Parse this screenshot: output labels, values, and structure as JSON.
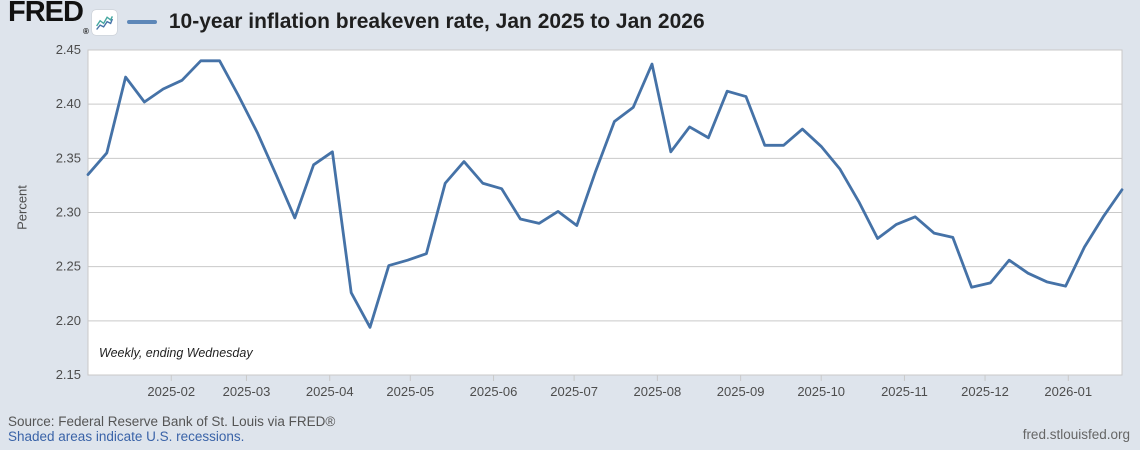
{
  "header": {
    "logo_text": "FRED",
    "logo_reg": "®"
  },
  "chart_data": {
    "type": "line",
    "title": "10-year inflation breakeven rate, Jan 2025 to Jan 2026",
    "ylabel": "Percent",
    "xlabel": "",
    "annotation": "Weekly, ending Wednesday",
    "legend_position": "top",
    "grid": true,
    "ylim": [
      2.15,
      2.45
    ],
    "ytick_step": 0.05,
    "yticks": [
      "2.45",
      "2.40",
      "2.35",
      "2.30",
      "2.25",
      "2.20",
      "2.15"
    ],
    "xticks": [
      "2025-02",
      "2025-03",
      "2025-04",
      "2025-05",
      "2025-06",
      "2025-07",
      "2025-08",
      "2025-09",
      "2025-10",
      "2025-11",
      "2025-12",
      "2026-01"
    ],
    "x": [
      "2025-01-01",
      "2025-01-08",
      "2025-01-15",
      "2025-01-22",
      "2025-01-29",
      "2025-02-05",
      "2025-02-12",
      "2025-02-19",
      "2025-02-26",
      "2025-03-05",
      "2025-03-12",
      "2025-03-19",
      "2025-03-26",
      "2025-04-02",
      "2025-04-09",
      "2025-04-16",
      "2025-04-23",
      "2025-04-30",
      "2025-05-07",
      "2025-05-14",
      "2025-05-21",
      "2025-05-28",
      "2025-06-04",
      "2025-06-11",
      "2025-06-18",
      "2025-06-25",
      "2025-07-02",
      "2025-07-09",
      "2025-07-16",
      "2025-07-23",
      "2025-07-30",
      "2025-08-06",
      "2025-08-13",
      "2025-08-20",
      "2025-08-27",
      "2025-09-03",
      "2025-09-10",
      "2025-09-17",
      "2025-09-24",
      "2025-10-01",
      "2025-10-08",
      "2025-10-15",
      "2025-10-22",
      "2025-10-29",
      "2025-11-05",
      "2025-11-12",
      "2025-11-19",
      "2025-11-26",
      "2025-12-03",
      "2025-12-10",
      "2025-12-17",
      "2025-12-24",
      "2025-12-31",
      "2026-01-07",
      "2026-01-14",
      "2026-01-21"
    ],
    "values": [
      2.335,
      2.355,
      2.425,
      2.402,
      2.414,
      2.422,
      2.44,
      2.44,
      2.408,
      2.374,
      2.335,
      2.295,
      2.344,
      2.356,
      2.226,
      2.194,
      2.251,
      2.256,
      2.262,
      2.327,
      2.347,
      2.327,
      2.322,
      2.294,
      2.29,
      2.301,
      2.288,
      2.338,
      2.384,
      2.397,
      2.437,
      2.356,
      2.379,
      2.369,
      2.412,
      2.407,
      2.362,
      2.362,
      2.377,
      2.361,
      2.34,
      2.31,
      2.276,
      2.289,
      2.296,
      2.281,
      2.277,
      2.231,
      2.235,
      2.256,
      2.244,
      2.236,
      2.232,
      2.268,
      2.296,
      2.321
    ],
    "line_color": "#4572a7",
    "grid_color": "#c9c9c9",
    "axis_text_color": "#4d4d4d",
    "plot_background": "#ffffff",
    "page_background": "#dee4ec"
  },
  "footer": {
    "source": "Source: Federal Reserve Bank of St. Louis via FRED®",
    "recession_note": "Shaded areas indicate U.S. recessions.",
    "site": "fred.stlouisfed.org"
  }
}
